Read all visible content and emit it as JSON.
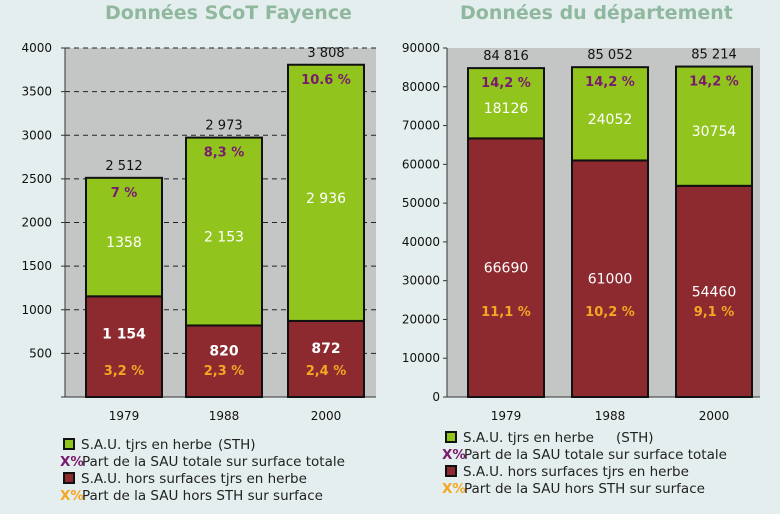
{
  "chart_data": [
    {
      "type": "bar",
      "stacked": true,
      "title": "Données SCoT  Fayence",
      "categories": [
        "1979",
        "1988",
        "2000"
      ],
      "ylim": [
        0,
        4000
      ],
      "yticks": [
        "",
        "500",
        "1000",
        "1500",
        "2000",
        "2500",
        "3000",
        "3500",
        "4000"
      ],
      "grid": true,
      "series": [
        {
          "name": "S.A.U. hors surfaces tjrs en herbe",
          "values": [
            1154,
            820,
            872
          ],
          "labels": [
            "1 154",
            "820",
            "872"
          ],
          "color": "#8c2a30"
        },
        {
          "name": "S.A.U. tjrs en herbe",
          "values": [
            1358,
            2153,
            2936
          ],
          "labels": [
            "1358",
            "2 153",
            "2 936"
          ],
          "color": "#92c41e"
        }
      ],
      "totals": [
        "2 512",
        "2 973",
        "3 808"
      ],
      "pct_total": [
        "7 %",
        "8,3 %",
        "10.6 %"
      ],
      "pct_hors_sth": [
        "3,2 %",
        "2,3 %",
        "2,4 %"
      ]
    },
    {
      "type": "bar",
      "stacked": true,
      "title": "Données du département",
      "categories": [
        "1979",
        "1988",
        "2000"
      ],
      "ylim": [
        0,
        90000
      ],
      "yticks": [
        "0",
        "10000",
        "20000",
        "30000",
        "40000",
        "50000",
        "60000",
        "70000",
        "80000",
        "90000"
      ],
      "grid": false,
      "series": [
        {
          "name": "S.A.U. hors surfaces tjrs en herbe",
          "values": [
            66690,
            61000,
            54460
          ],
          "labels": [
            "66690",
            "61000",
            "54460"
          ],
          "color": "#8c2a30"
        },
        {
          "name": "S.A.U. tjrs en herbe",
          "values": [
            18126,
            24052,
            30754
          ],
          "labels": [
            "18126",
            "24052",
            "30754"
          ],
          "color": "#92c41e"
        }
      ],
      "totals": [
        "84 816",
        "85 052",
        "85 214"
      ],
      "pct_total": [
        "14,2 %",
        "14,2 %",
        "14,2 %"
      ],
      "pct_hors_sth": [
        "11,1 %",
        "10,2 %",
        "9,1 %"
      ]
    }
  ],
  "legends": [
    [
      {
        "kind": "square",
        "color": "#92c41e",
        "text": "S.A.U. tjrs en herbe",
        "suffix": "(STH)"
      },
      {
        "kind": "pct",
        "marker": "X%",
        "marker_color": "#7a1a6e",
        "text": "Part de la SAU totale sur surface totale"
      },
      {
        "kind": "square",
        "color": "#8c2a30",
        "text": "S.A.U. hors surfaces tjrs en herbe"
      },
      {
        "kind": "pct",
        "marker": "X%",
        "marker_color": "#f5a623",
        "text": "Part de la SAU hors STH  sur surface"
      }
    ],
    [
      {
        "kind": "square",
        "color": "#92c41e",
        "text": "S.A.U. tjrs en herbe",
        "suffix": "(STH)"
      },
      {
        "kind": "pct",
        "marker": "X%",
        "marker_color": "#7a1a6e",
        "text": "Part de la SAU totale sur surface totale"
      },
      {
        "kind": "square",
        "color": "#8c2a30",
        "text": "S.A.U. hors surfaces tjrs en herbe"
      },
      {
        "kind": "pct",
        "marker": "X%",
        "marker_color": "#f5a623",
        "text": "Part de la SAU hors STH  sur surface"
      }
    ]
  ],
  "colors": {
    "pct_total": "#7a1a6e",
    "pct_hors": "#f5a623",
    "total_label": "#111111",
    "inner_label": "#ffffff"
  }
}
